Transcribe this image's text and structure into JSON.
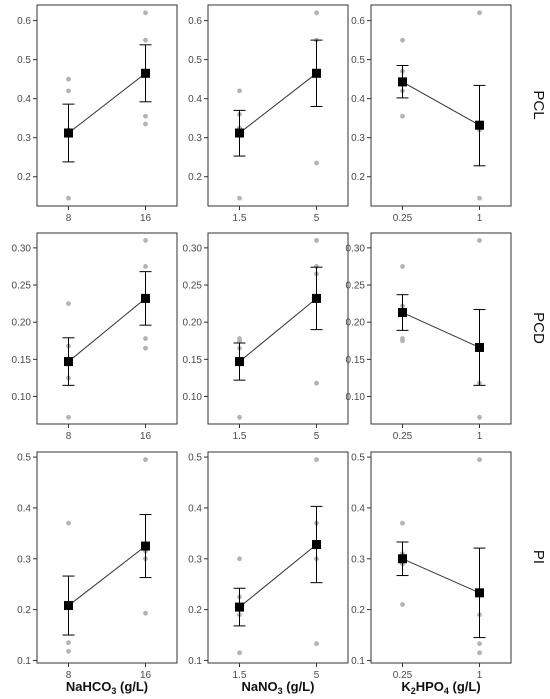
{
  "colors": {
    "point": "#b3b3b3",
    "mean": "#000000",
    "frame": "#333333",
    "line": "#333333"
  },
  "x_titles": [
    {
      "main": "NaHCO",
      "sub": "3",
      "rest": " (g/L)"
    },
    {
      "main": "NaNO",
      "sub": "3",
      "rest": " (g/L)"
    },
    {
      "main": "K",
      "sub": "2",
      "mid": "HPO",
      "sub2": "4",
      "rest": " (g/L)"
    }
  ],
  "row_labels": [
    "PCL",
    "PCD",
    "PI"
  ],
  "chart_data": [
    {
      "type": "scatter",
      "row": "PCL",
      "xlabel": "NaHCO3 (g/L)",
      "categories": [
        "8",
        "16"
      ],
      "yticks": [
        "0.2",
        "0.3",
        "0.4",
        "0.5",
        "0.6"
      ],
      "ylim": [
        0.125,
        0.64
      ],
      "points": [
        [
          0.145,
          0.31,
          0.32,
          0.42,
          0.45
        ],
        [
          0.335,
          0.355,
          0.47,
          0.55,
          0.62
        ]
      ],
      "mean": [
        0.312,
        0.465
      ],
      "ci_low": [
        0.238,
        0.392
      ],
      "ci_high": [
        0.386,
        0.538
      ]
    },
    {
      "type": "scatter",
      "row": "PCL",
      "xlabel": "NaNO3 (g/L)",
      "categories": [
        "1.5",
        "5"
      ],
      "yticks": [
        "0.2",
        "0.3",
        "0.4",
        "0.5",
        "0.6"
      ],
      "ylim": [
        0.125,
        0.64
      ],
      "points": [
        [
          0.145,
          0.31,
          0.325,
          0.36,
          0.42
        ],
        [
          0.235,
          0.47,
          0.55,
          0.62
        ]
      ],
      "mean": [
        0.312,
        0.465
      ],
      "ci_low": [
        0.253,
        0.38
      ],
      "ci_high": [
        0.37,
        0.55
      ]
    },
    {
      "type": "scatter",
      "row": "PCL",
      "xlabel": "K2HPO4 (g/L)",
      "categories": [
        "0.25",
        "1"
      ],
      "yticks": [
        "0.2",
        "0.3",
        "0.4",
        "0.5",
        "0.6"
      ],
      "ylim": [
        0.125,
        0.64
      ],
      "points": [
        [
          0.355,
          0.42,
          0.44,
          0.47,
          0.55
        ],
        [
          0.145,
          0.32,
          0.62
        ]
      ],
      "mean": [
        0.443,
        0.332
      ],
      "ci_low": [
        0.402,
        0.228
      ],
      "ci_high": [
        0.485,
        0.434
      ]
    },
    {
      "type": "scatter",
      "row": "PCD",
      "xlabel": "NaHCO3 (g/L)",
      "categories": [
        "8",
        "16"
      ],
      "yticks": [
        "0.10",
        "0.15",
        "0.20",
        "0.25",
        "0.30"
      ],
      "ylim": [
        0.063,
        0.32
      ],
      "points": [
        [
          0.072,
          0.125,
          0.148,
          0.168,
          0.225
        ],
        [
          0.165,
          0.178,
          0.23,
          0.275,
          0.31
        ]
      ],
      "mean": [
        0.147,
        0.232
      ],
      "ci_low": [
        0.115,
        0.196
      ],
      "ci_high": [
        0.179,
        0.268
      ]
    },
    {
      "type": "scatter",
      "row": "PCD",
      "xlabel": "NaNO3 (g/L)",
      "categories": [
        "1.5",
        "5"
      ],
      "yticks": [
        "0.10",
        "0.15",
        "0.20",
        "0.25",
        "0.30"
      ],
      "ylim": [
        0.063,
        0.32
      ],
      "points": [
        [
          0.072,
          0.15,
          0.165,
          0.175,
          0.178
        ],
        [
          0.118,
          0.23,
          0.265,
          0.275,
          0.31
        ]
      ],
      "mean": [
        0.147,
        0.232
      ],
      "ci_low": [
        0.122,
        0.19
      ],
      "ci_high": [
        0.172,
        0.274
      ]
    },
    {
      "type": "scatter",
      "row": "PCD",
      "xlabel": "K2HPO4 (g/L)",
      "categories": [
        "0.25",
        "1"
      ],
      "yticks": [
        "0.10",
        "0.15",
        "0.20",
        "0.25",
        "0.30"
      ],
      "ylim": [
        0.063,
        0.32
      ],
      "points": [
        [
          0.175,
          0.178,
          0.21,
          0.222,
          0.275
        ],
        [
          0.072,
          0.118,
          0.31
        ]
      ],
      "mean": [
        0.213,
        0.166
      ],
      "ci_low": [
        0.189,
        0.115
      ],
      "ci_high": [
        0.237,
        0.217
      ]
    },
    {
      "type": "scatter",
      "row": "PI",
      "xlabel": "NaHCO3 (g/L)",
      "categories": [
        "8",
        "16"
      ],
      "yticks": [
        "0.1",
        "0.2",
        "0.3",
        "0.4",
        "0.5"
      ],
      "ylim": [
        0.095,
        0.51
      ],
      "points": [
        [
          0.118,
          0.135,
          0.205,
          0.37
        ],
        [
          0.193,
          0.3,
          0.315,
          0.33,
          0.495
        ]
      ],
      "mean": [
        0.208,
        0.325
      ],
      "ci_low": [
        0.15,
        0.263
      ],
      "ci_high": [
        0.266,
        0.387
      ]
    },
    {
      "type": "scatter",
      "row": "PI",
      "xlabel": "NaNO3 (g/L)",
      "categories": [
        "1.5",
        "5"
      ],
      "yticks": [
        "0.1",
        "0.2",
        "0.3",
        "0.4",
        "0.5"
      ],
      "ylim": [
        0.095,
        0.51
      ],
      "points": [
        [
          0.115,
          0.19,
          0.2,
          0.225,
          0.3
        ],
        [
          0.133,
          0.3,
          0.33,
          0.37,
          0.495
        ]
      ],
      "mean": [
        0.205,
        0.328
      ],
      "ci_low": [
        0.168,
        0.253
      ],
      "ci_high": [
        0.242,
        0.403
      ]
    },
    {
      "type": "scatter",
      "row": "PI",
      "xlabel": "K2HPO4 (g/L)",
      "categories": [
        "0.25",
        "1"
      ],
      "yticks": [
        "0.1",
        "0.2",
        "0.3",
        "0.4",
        "0.5"
      ],
      "ylim": [
        0.095,
        0.51
      ],
      "points": [
        [
          0.21,
          0.29,
          0.3,
          0.31,
          0.37
        ],
        [
          0.115,
          0.133,
          0.19,
          0.495
        ]
      ],
      "mean": [
        0.3,
        0.233
      ],
      "ci_low": [
        0.267,
        0.145
      ],
      "ci_high": [
        0.333,
        0.321
      ]
    }
  ]
}
